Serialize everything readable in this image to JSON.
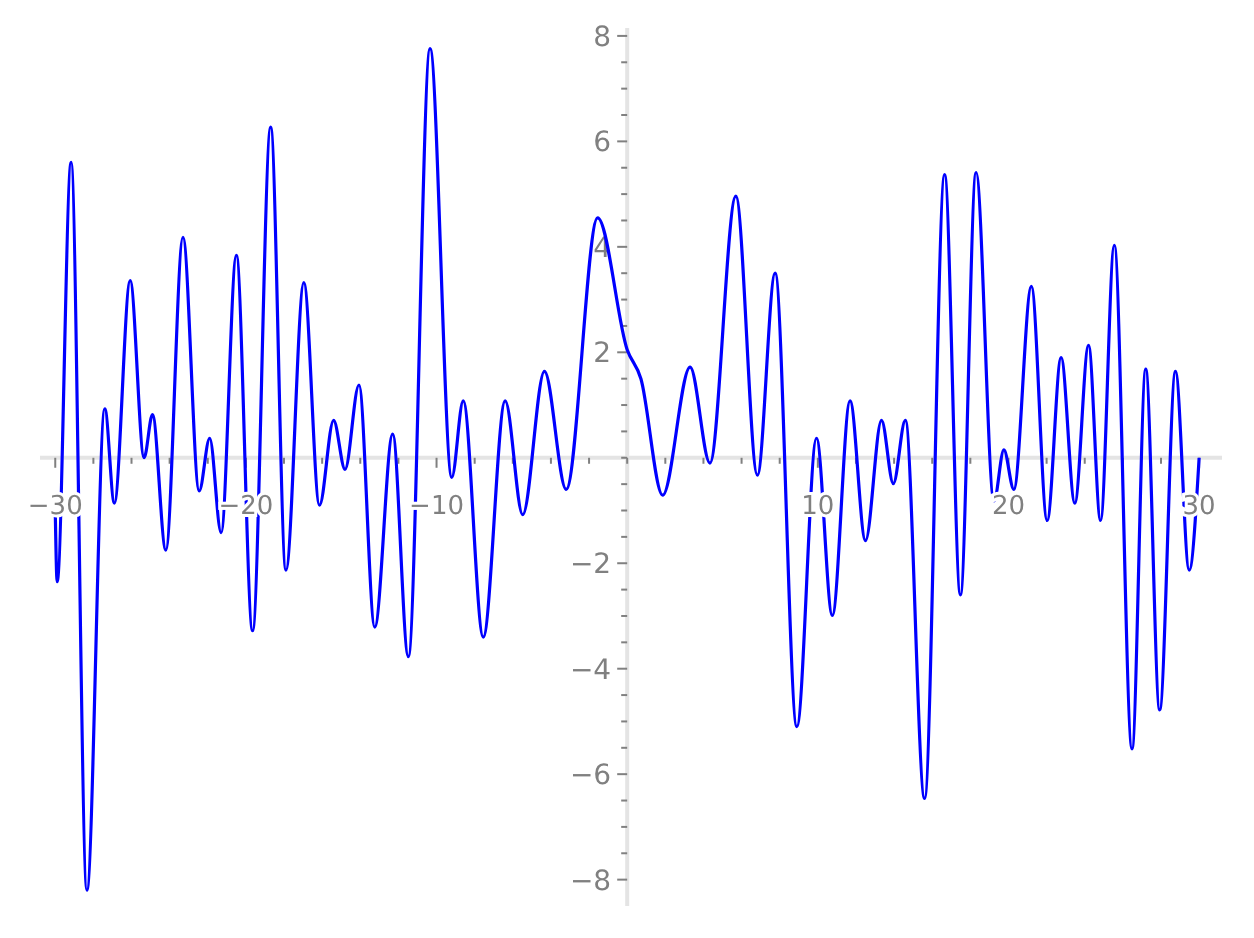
{
  "chart_data": {
    "type": "line",
    "color": "#0000ff",
    "marker": "none",
    "grid": false,
    "xlim": [
      -30.8,
      31.2
    ],
    "ylim": [
      -8.5,
      8.15
    ],
    "xticks": [
      -30,
      {
        "value": -28,
        "label": null
      },
      {
        "value": -26,
        "label": null
      },
      {
        "value": -24,
        "label": null
      },
      {
        "value": -22,
        "label": null
      },
      -20,
      {
        "value": -18,
        "label": null
      },
      {
        "value": -16,
        "label": null
      },
      {
        "value": -14,
        "label": null
      },
      {
        "value": -12,
        "label": null
      },
      -10,
      {
        "value": -8,
        "label": null
      },
      {
        "value": -6,
        "label": null
      },
      {
        "value": -4,
        "label": null
      },
      {
        "value": -2,
        "label": null
      },
      {
        "value": 0,
        "label": null
      },
      {
        "value": 2,
        "label": null
      },
      {
        "value": 4,
        "label": null
      },
      {
        "value": 6,
        "label": null
      },
      {
        "value": 8,
        "label": null
      },
      10,
      {
        "value": 12,
        "label": null
      },
      {
        "value": 14,
        "label": null
      },
      {
        "value": 16,
        "label": null
      },
      {
        "value": 18,
        "label": null
      },
      20,
      {
        "value": 22,
        "label": null
      },
      {
        "value": 24,
        "label": null
      },
      {
        "value": 26,
        "label": null
      },
      {
        "value": 28,
        "label": null
      },
      30
    ],
    "yticks": [
      -8,
      {
        "value": -7.5,
        "label": null
      },
      {
        "value": -7,
        "label": null
      },
      {
        "value": -6.5,
        "label": null
      },
      -6,
      {
        "value": -5.5,
        "label": null
      },
      {
        "value": -5,
        "label": null
      },
      {
        "value": -4.5,
        "label": null
      },
      -4,
      {
        "value": -3.5,
        "label": null
      },
      {
        "value": -3,
        "label": null
      },
      {
        "value": -2.5,
        "label": null
      },
      -2,
      {
        "value": -1.5,
        "label": null
      },
      {
        "value": -1,
        "label": null
      },
      {
        "value": -0.5,
        "label": null
      },
      {
        "value": 0,
        "label": null
      },
      {
        "value": 0.5,
        "label": null
      },
      {
        "value": 1,
        "label": null
      },
      {
        "value": 1.5,
        "label": null
      },
      2,
      {
        "value": 2.5,
        "label": null
      },
      {
        "value": 3,
        "label": null
      },
      {
        "value": 3.5,
        "label": null
      },
      4,
      {
        "value": 4.5,
        "label": null
      },
      {
        "value": 5,
        "label": null
      },
      {
        "value": 5.5,
        "label": null
      },
      6,
      {
        "value": 6.5,
        "label": null
      },
      {
        "value": 7,
        "label": null
      },
      {
        "value": 7.5,
        "label": null
      },
      8
    ],
    "x": [
      -30,
      -29.9,
      -29.17,
      -28.34,
      -27.4,
      -26.9,
      -26.07,
      -25.34,
      -24.9,
      -24.2,
      -23.3,
      -22.45,
      -21.9,
      -21.3,
      -20.5,
      -19.65,
      -18.7,
      -17.9,
      -16.96,
      -16.14,
      -15.4,
      -14.8,
      -14.07,
      -13.24,
      -12.3,
      -11.48,
      -10.34,
      -9.2,
      -8.6,
      -7.55,
      -6.4,
      -5.48,
      -4.34,
      -3.2,
      -1.55,
      0,
      0.72,
      1.86,
      3.3,
      4.34,
      5.7,
      6.83,
      7.76,
      8.9,
      9.93,
      10.76,
      11.69,
      12.5,
      13.34,
      13.96,
      14.59,
      15.6,
      16.65,
      17.48,
      18.3,
      19.24,
      19.76,
      20.28,
      21.2,
      22.03,
      22.76,
      23.48,
      24.2,
      24.83,
      25.55,
      26.48,
      27.2,
      27.93,
      28.76,
      29.48,
      30
    ],
    "values": [
      -1.0,
      -2.35,
      5.6,
      -8.2,
      0.93,
      -0.86,
      3.36,
      0.0,
      0.82,
      -1.75,
      4.18,
      -0.63,
      0.37,
      -1.42,
      3.84,
      -3.28,
      6.27,
      -2.13,
      3.32,
      -0.9,
      0.71,
      -0.22,
      1.38,
      -3.21,
      0.45,
      -3.77,
      7.76,
      -0.37,
      1.08,
      -3.4,
      1.08,
      -1.08,
      1.64,
      -0.6,
      4.55,
      2.05,
      1.5,
      -0.71,
      1.72,
      -0.1,
      4.96,
      -0.33,
      3.5,
      -5.1,
      0.37,
      -2.99,
      1.08,
      -1.57,
      0.71,
      -0.49,
      0.71,
      -6.46,
      5.37,
      -2.6,
      5.41,
      -0.82,
      0.15,
      -0.6,
      3.25,
      -1.19,
      1.9,
      -0.86,
      2.13,
      -1.19,
      4.03,
      -5.52,
      1.68,
      -4.78,
      1.64,
      -2.13,
      0.0
    ]
  }
}
